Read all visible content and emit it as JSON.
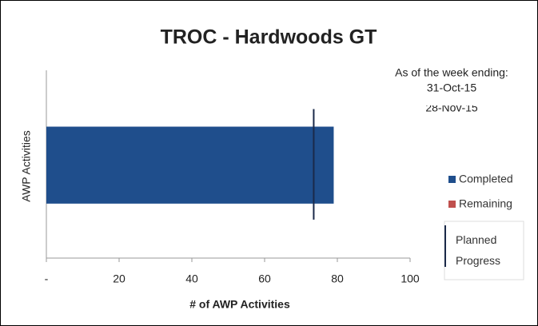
{
  "chart_data": {
    "type": "hbar",
    "title": "TROC - Hardwoods GT",
    "annotations": [
      "As of the week ending:",
      "31-Oct-15",
      "28-Nov-15"
    ],
    "xlabel": "# of AWP Activities",
    "ylabel": "AWP Activities",
    "categories": [
      null
    ],
    "series": [
      {
        "name": "Completed",
        "color": "#1f4e8c",
        "values": [
          79
        ]
      },
      {
        "name": "Remaining",
        "color": "#c0504d",
        "values": [
          0
        ]
      }
    ],
    "planned_progress": {
      "name": "Planned Progress",
      "color": "#1b2a4a",
      "value": 73.5
    },
    "xlim": [
      0,
      100
    ],
    "xticks": [
      {
        "value": 0,
        "label": "-"
      },
      20,
      40,
      60,
      80,
      100
    ],
    "grid": false
  }
}
